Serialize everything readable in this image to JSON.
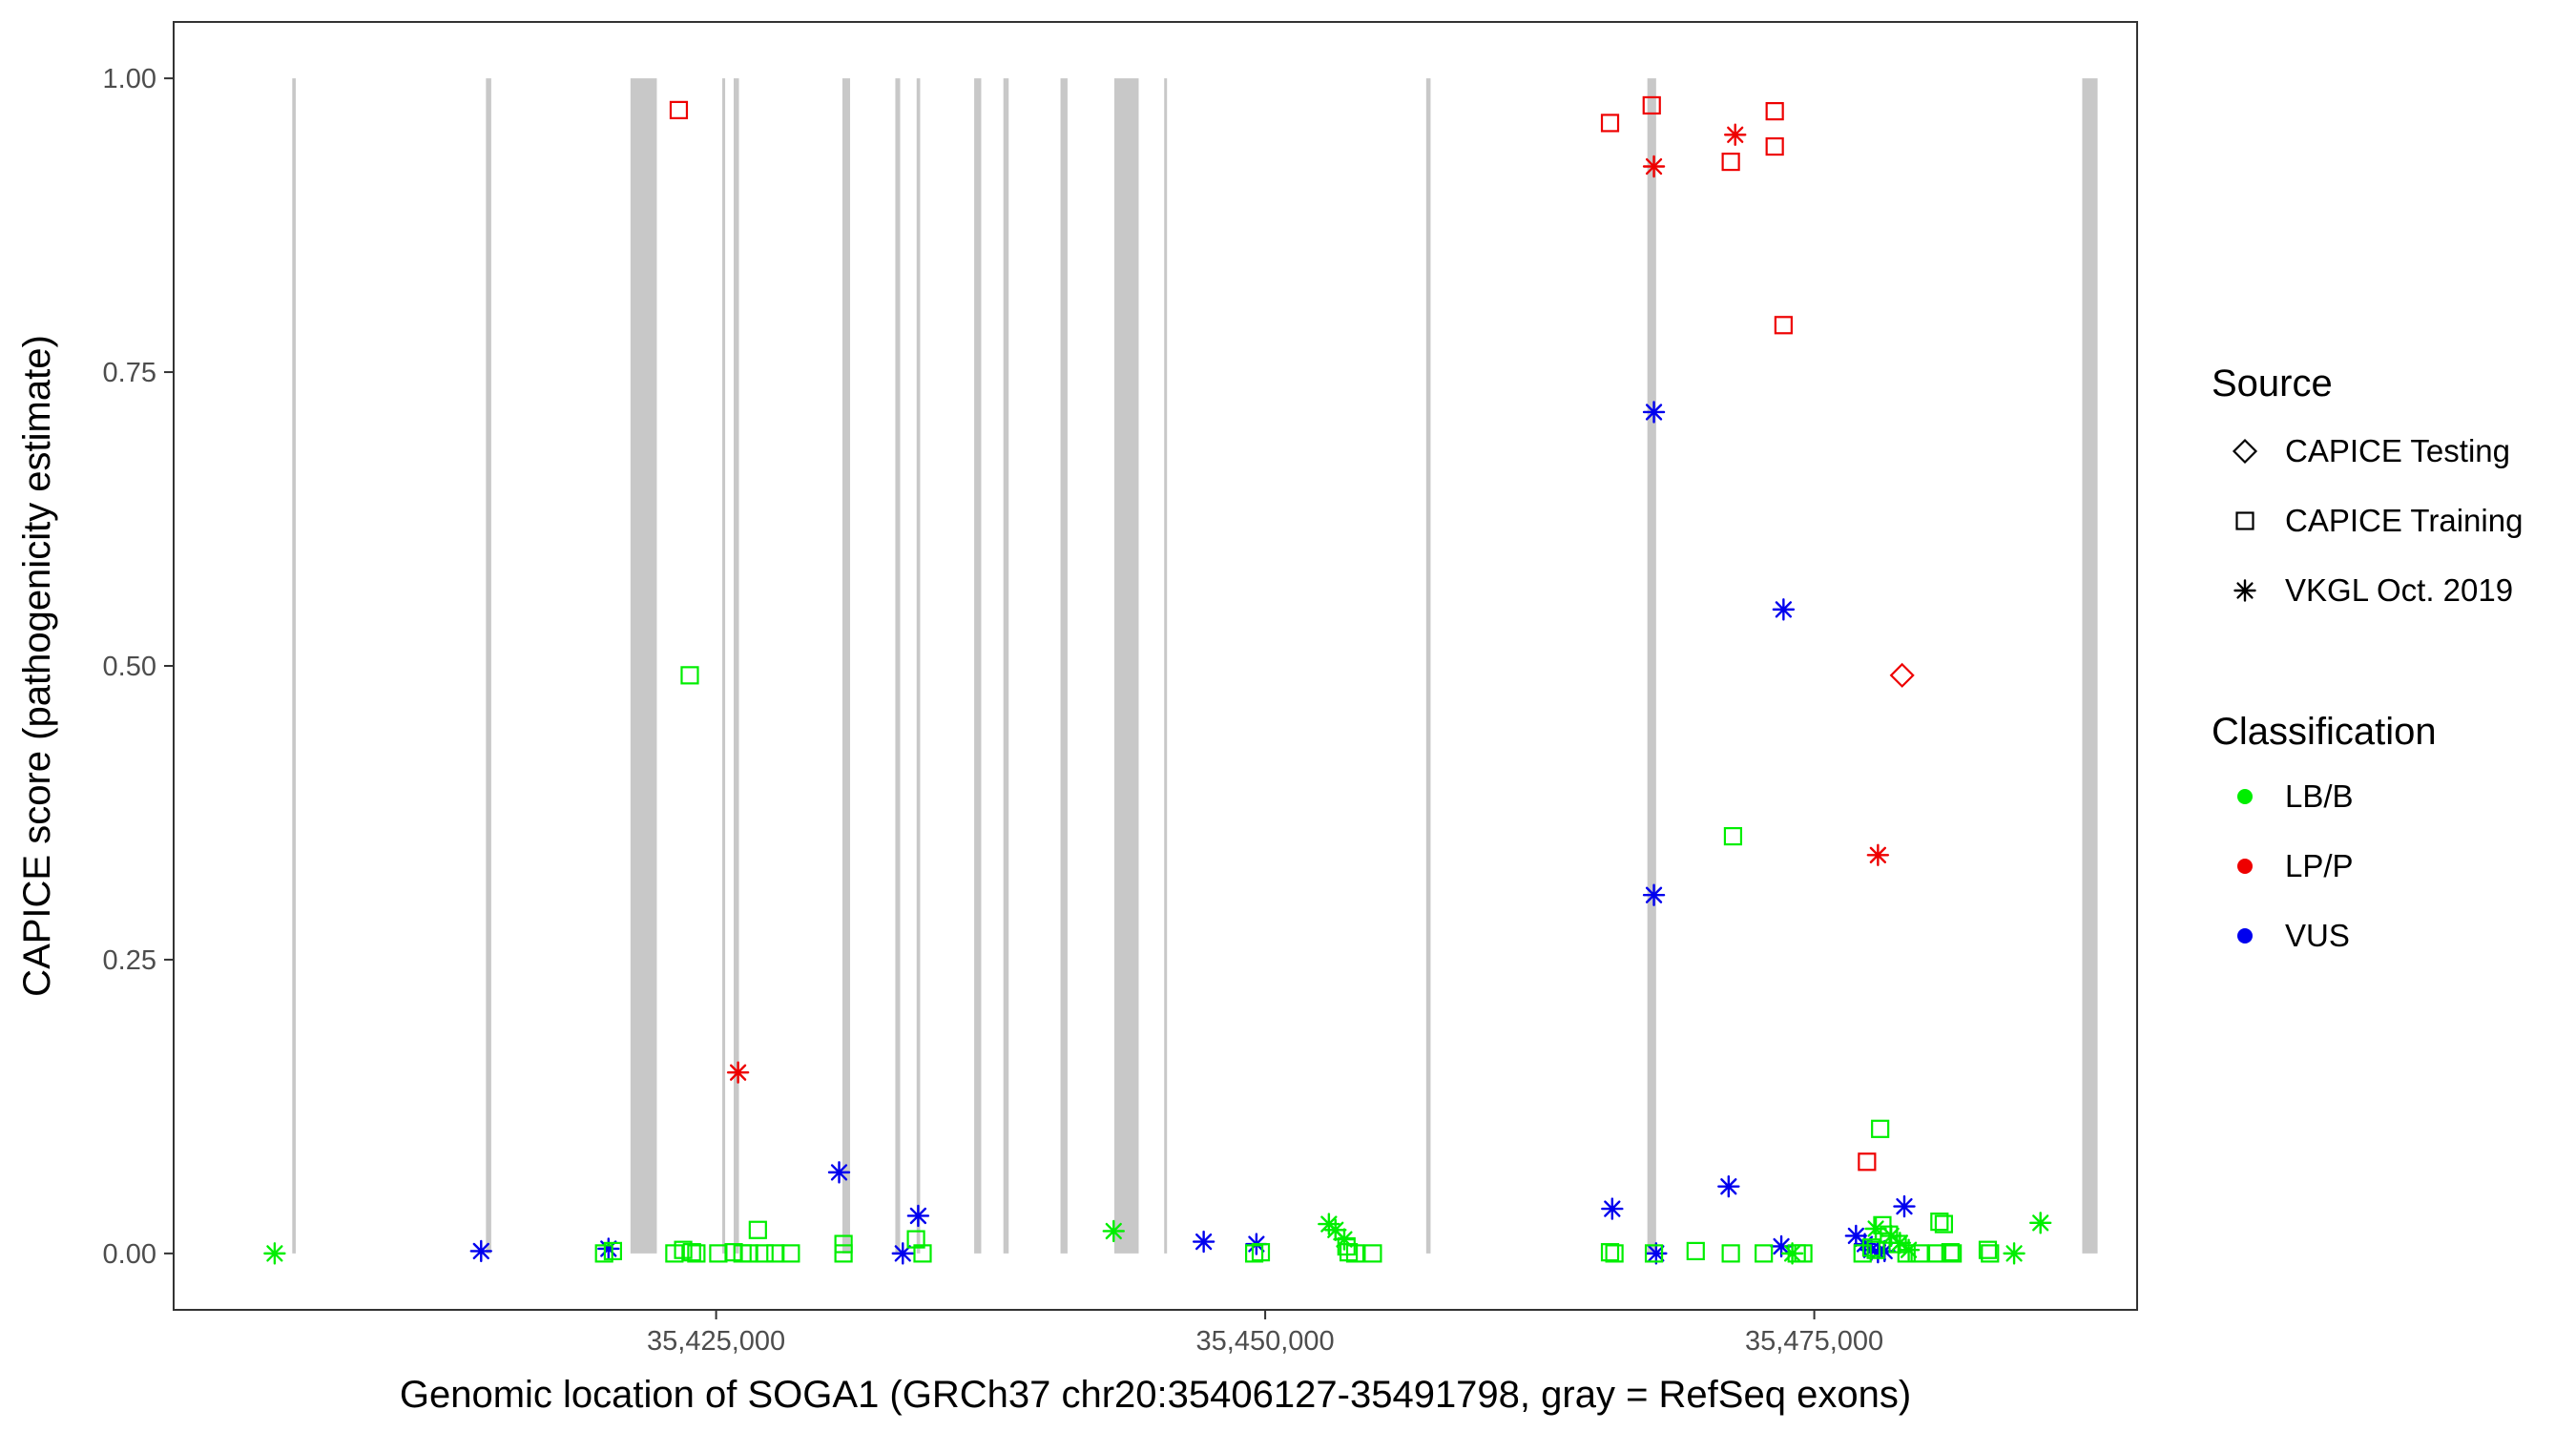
{
  "chart_data": {
    "type": "scatter",
    "xlabel": "Genomic location of SOGA1 (GRCh37 chr20:35406127-35491798, gray = RefSeq exons)",
    "ylabel": "CAPICE score (pathogenicity estimate)",
    "xlim": [
      35400300,
      35489700
    ],
    "ylim": [
      -0.048,
      1.048
    ],
    "x_ticks": [
      35425000,
      35450000,
      35475000
    ],
    "x_tick_labels": [
      "35,425,000",
      "35,450,000",
      "35,475,000"
    ],
    "y_ticks": [
      0.0,
      0.25,
      0.5,
      0.75,
      1.0
    ],
    "y_tick_labels": [
      "0.00",
      "0.25",
      "0.50",
      "0.75",
      "1.00"
    ],
    "grid": false,
    "exons": [
      [
        35405700,
        35405860
      ],
      [
        35414520,
        35414760
      ],
      [
        35421100,
        35422300
      ],
      [
        35425280,
        35425400
      ],
      [
        35425800,
        35426040
      ],
      [
        35430750,
        35431100
      ],
      [
        35433160,
        35433380
      ],
      [
        35434130,
        35434290
      ],
      [
        35436750,
        35437070
      ],
      [
        35438080,
        35438320
      ],
      [
        35440680,
        35441000
      ],
      [
        35443130,
        35444240
      ],
      [
        35445400,
        35445520
      ],
      [
        35457330,
        35457530
      ],
      [
        35467400,
        35467800
      ],
      [
        35487200,
        35487900
      ]
    ],
    "legend": {
      "source_title": "Source",
      "source_items": [
        {
          "label": "CAPICE Testing",
          "shape": "diamond"
        },
        {
          "label": "CAPICE Training",
          "shape": "square"
        },
        {
          "label": "VKGL Oct. 2019",
          "shape": "asterisk"
        }
      ],
      "class_title": "Classification",
      "class_items": [
        {
          "label": "LB/B",
          "color": "#00ee00"
        },
        {
          "label": "LP/P",
          "color": "#ee0000"
        },
        {
          "label": "VUS",
          "color": "#0000ee"
        }
      ]
    },
    "series": [
      {
        "source": "CAPICE Training",
        "classification": "LP/P",
        "shape": "square",
        "color": "#ee0000",
        "x": [
          35423300,
          35465700,
          35467600,
          35471200,
          35473200,
          35473200,
          35473600,
          35477400
        ],
        "y": [
          0.973,
          0.962,
          0.977,
          0.929,
          0.972,
          0.942,
          0.79,
          0.078
        ]
      },
      {
        "source": "VKGL Oct. 2019",
        "classification": "LP/P",
        "shape": "asterisk",
        "color": "#ee0000",
        "x": [
          35467700,
          35471400,
          35426000,
          35477900
        ],
        "y": [
          0.925,
          0.952,
          0.154,
          0.339
        ]
      },
      {
        "source": "CAPICE Testing",
        "classification": "LP/P",
        "shape": "diamond",
        "color": "#ee0000",
        "x": [
          35479000
        ],
        "y": [
          0.492
        ]
      },
      {
        "source": "VKGL Oct. 2019",
        "classification": "VUS",
        "shape": "asterisk",
        "color": "#0000ee",
        "x": [
          35414300,
          35420100,
          35430600,
          35433500,
          35434200,
          35447200,
          35449600,
          35465800,
          35467700,
          35467700,
          35467800,
          35471100,
          35473600,
          35473500,
          35476900,
          35477300,
          35477600,
          35477900,
          35478200,
          35479100
        ],
        "y": [
          0.002,
          0.004,
          0.069,
          0.0,
          0.032,
          0.01,
          0.008,
          0.038,
          0.716,
          0.305,
          0.0,
          0.057,
          0.548,
          0.006,
          0.015,
          0.008,
          0.003,
          0.001,
          0.002,
          0.04
        ]
      },
      {
        "source": "CAPICE Training",
        "classification": "LB/B",
        "shape": "square",
        "color": "#00ee00",
        "x": [
          35419900,
          35420300,
          35423100,
          35423500,
          35423800,
          35423900,
          35424100,
          35425100,
          35425800,
          35426200,
          35426500,
          35426900,
          35427200,
          35427700,
          35428400,
          35430800,
          35430800,
          35434100,
          35434400,
          35449500,
          35449800,
          35453700,
          35453800,
          35454100,
          35454900,
          35465700,
          35465900,
          35467700,
          35469600,
          35471200,
          35472700,
          35474200,
          35474500,
          35477200,
          35477600,
          35477800,
          35478100,
          35478400,
          35478800,
          35479200,
          35479800,
          35480600,
          35480700,
          35480900,
          35481200,
          35481300,
          35482900,
          35483000,
          35471300,
          35478000
        ],
        "y": [
          0.0,
          0.002,
          0.0,
          0.003,
          0.492,
          0.001,
          0.0,
          0.0,
          0.001,
          0.0,
          0.0,
          0.02,
          0.0,
          0.0,
          0.0,
          0.0,
          0.008,
          0.012,
          0.0,
          0.0,
          0.001,
          0.006,
          0.001,
          0.0,
          0.0,
          0.001,
          0.0,
          0.0,
          0.002,
          0.0,
          0.0,
          0.0,
          0.0,
          0.0,
          0.005,
          0.003,
          0.024,
          0.016,
          0.008,
          0.0,
          0.0,
          0.0,
          0.027,
          0.025,
          0.001,
          0.0,
          0.003,
          0.0,
          0.355,
          0.106
        ]
      },
      {
        "source": "VKGL Oct. 2019",
        "classification": "LB/B",
        "shape": "asterisk",
        "color": "#00ee00",
        "x": [
          35404900,
          35443100,
          35452900,
          35453200,
          35453600,
          35474000,
          35477800,
          35478500,
          35478900,
          35479300,
          35484100,
          35485300
        ],
        "y": [
          0.0,
          0.019,
          0.025,
          0.02,
          0.012,
          0.0,
          0.021,
          0.015,
          0.009,
          0.003,
          0.0,
          0.026
        ]
      }
    ]
  }
}
